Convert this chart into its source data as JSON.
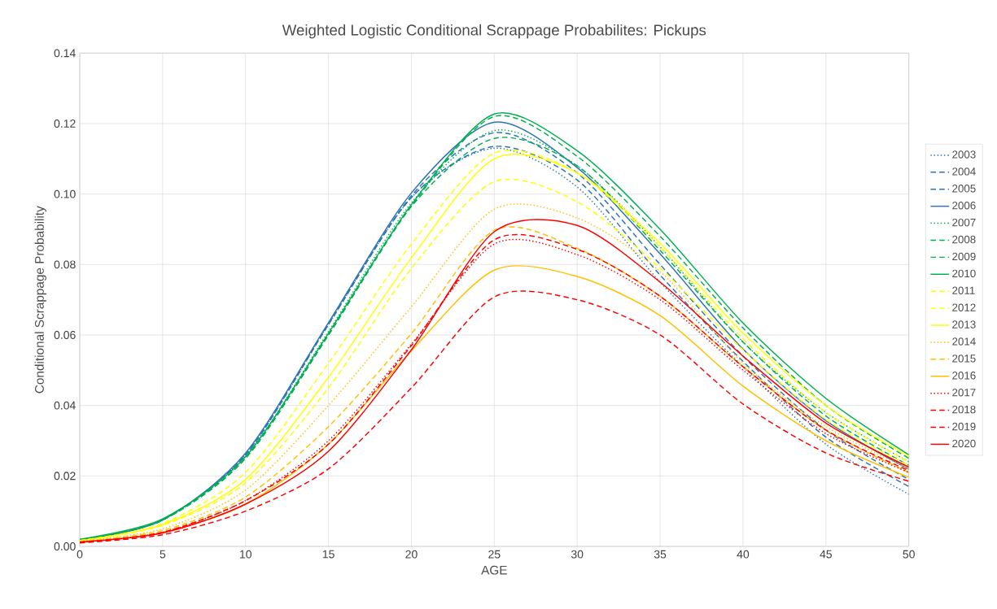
{
  "chart_data": {
    "type": "line",
    "title": "Weighted Logistic Conditional Scrappage Probabilites: Pickups",
    "xlabel": "AGE",
    "ylabel": "Conditional Scrappage Probability",
    "x": [
      0,
      5,
      10,
      15,
      20,
      25,
      30,
      35,
      40,
      45,
      50
    ],
    "xlim": [
      0,
      50
    ],
    "xticks": [
      0,
      5,
      10,
      15,
      20,
      25,
      30,
      35,
      40,
      45,
      50
    ],
    "ylim": [
      0,
      0.14
    ],
    "yticks": [
      {
        "value": 0,
        "label": "0.00"
      },
      {
        "value": 0.02,
        "label": "0.02"
      },
      {
        "value": 0.04,
        "label": "0.04"
      },
      {
        "value": 0.06,
        "label": "0.06"
      },
      {
        "value": 0.08,
        "label": "0.08"
      },
      {
        "value": 0.1,
        "label": "0.10"
      },
      {
        "value": 0.12,
        "label": "0.12"
      },
      {
        "value": 0.14,
        "label": "0.14"
      }
    ],
    "grid": true,
    "legend": "right",
    "marker": "none",
    "series": [
      {
        "name": "2003",
        "color": "#2e75b6",
        "line_style": "dotted",
        "values": [
          0.0018,
          0.0075,
          0.026,
          0.063,
          0.099,
          0.113,
          0.102,
          0.075,
          0.051,
          0.029,
          0.0148
        ]
      },
      {
        "name": "2004",
        "color": "#2e75b6",
        "line_style": "dashed",
        "values": [
          0.0018,
          0.0075,
          0.026,
          0.063,
          0.099,
          0.1135,
          0.104,
          0.077,
          0.0525,
          0.031,
          0.017
        ]
      },
      {
        "name": "2005",
        "color": "#2e75b6",
        "line_style": "dashed",
        "values": [
          0.0018,
          0.0075,
          0.026,
          0.063,
          0.0995,
          0.1174,
          0.106,
          0.08,
          0.054,
          0.033,
          0.019
        ]
      },
      {
        "name": "2006",
        "color": "#2e75b6",
        "line_style": "solid",
        "values": [
          0.0018,
          0.0075,
          0.0265,
          0.0635,
          0.1003,
          0.1204,
          0.1075,
          0.083,
          0.056,
          0.0357,
          0.0219
        ]
      },
      {
        "name": "2007",
        "color": "#00b050",
        "line_style": "dotted",
        "values": [
          0.0018,
          0.0075,
          0.0255,
          0.061,
          0.0975,
          0.118,
          0.108,
          0.085,
          0.058,
          0.038,
          0.024
        ]
      },
      {
        "name": "2008",
        "color": "#00b050",
        "line_style": "dashed",
        "values": [
          0.0018,
          0.0075,
          0.025,
          0.06,
          0.0965,
          0.1158,
          0.108,
          0.084,
          0.058,
          0.037,
          0.023
        ]
      },
      {
        "name": "2009",
        "color": "#00b050",
        "line_style": "dashed",
        "values": [
          0.0018,
          0.0075,
          0.025,
          0.06,
          0.0966,
          0.122,
          0.1107,
          0.088,
          0.062,
          0.04,
          0.025
        ]
      },
      {
        "name": "2010",
        "color": "#00b050",
        "line_style": "solid",
        "values": [
          0.002,
          0.0078,
          0.0255,
          0.0605,
          0.097,
          0.1227,
          0.1123,
          0.09,
          0.0634,
          0.042,
          0.026
        ]
      },
      {
        "name": "2011",
        "color": "#ffff00",
        "line_style": "dashed",
        "values": [
          0.0016,
          0.006,
          0.018,
          0.045,
          0.0789,
          0.1035,
          0.0978,
          0.079,
          0.0558,
          0.036,
          0.023
        ]
      },
      {
        "name": "2012",
        "color": "#ffff00",
        "line_style": "dashed",
        "values": [
          0.0017,
          0.0065,
          0.021,
          0.052,
          0.0858,
          0.1116,
          0.106,
          0.085,
          0.059,
          0.038,
          0.024
        ]
      },
      {
        "name": "2013",
        "color": "#ffff00",
        "line_style": "solid",
        "values": [
          0.0016,
          0.0062,
          0.019,
          0.048,
          0.0819,
          0.11,
          0.106,
          0.086,
          0.0605,
          0.04,
          0.0256
        ]
      },
      {
        "name": "2014",
        "color": "#ffc000",
        "line_style": "dotted",
        "values": [
          0.0015,
          0.005,
          0.016,
          0.04,
          0.068,
          0.0957,
          0.0932,
          0.078,
          0.052,
          0.034,
          0.022
        ]
      },
      {
        "name": "2015",
        "color": "#ffc000",
        "line_style": "dashed",
        "values": [
          0.0014,
          0.0045,
          0.014,
          0.034,
          0.0604,
          0.0897,
          0.0846,
          0.071,
          0.051,
          0.033,
          0.021
        ]
      },
      {
        "name": "2016",
        "color": "#ffc000",
        "line_style": "solid",
        "values": [
          0.0012,
          0.004,
          0.012,
          0.029,
          0.0555,
          0.0784,
          0.0766,
          0.0655,
          0.0455,
          0.03,
          0.0196
        ]
      },
      {
        "name": "2017",
        "color": "#ff0000",
        "line_style": "dotted",
        "values": [
          0.0012,
          0.004,
          0.013,
          0.03,
          0.0574,
          0.0858,
          0.0828,
          0.07,
          0.05,
          0.032,
          0.021
        ]
      },
      {
        "name": "2018",
        "color": "#ff0000",
        "line_style": "dashed",
        "values": [
          0.0012,
          0.004,
          0.013,
          0.029,
          0.057,
          0.087,
          0.0843,
          0.071,
          0.051,
          0.033,
          0.0215
        ]
      },
      {
        "name": "2019",
        "color": "#ff0000",
        "line_style": "dashed",
        "values": [
          0.001,
          0.0033,
          0.01,
          0.022,
          0.045,
          0.0708,
          0.07,
          0.06,
          0.0404,
          0.0265,
          0.0185
        ]
      },
      {
        "name": "2020",
        "color": "#ff0000",
        "line_style": "solid",
        "values": [
          0.0012,
          0.0038,
          0.012,
          0.027,
          0.0558,
          0.0893,
          0.0911,
          0.075,
          0.054,
          0.035,
          0.0225
        ]
      }
    ]
  }
}
